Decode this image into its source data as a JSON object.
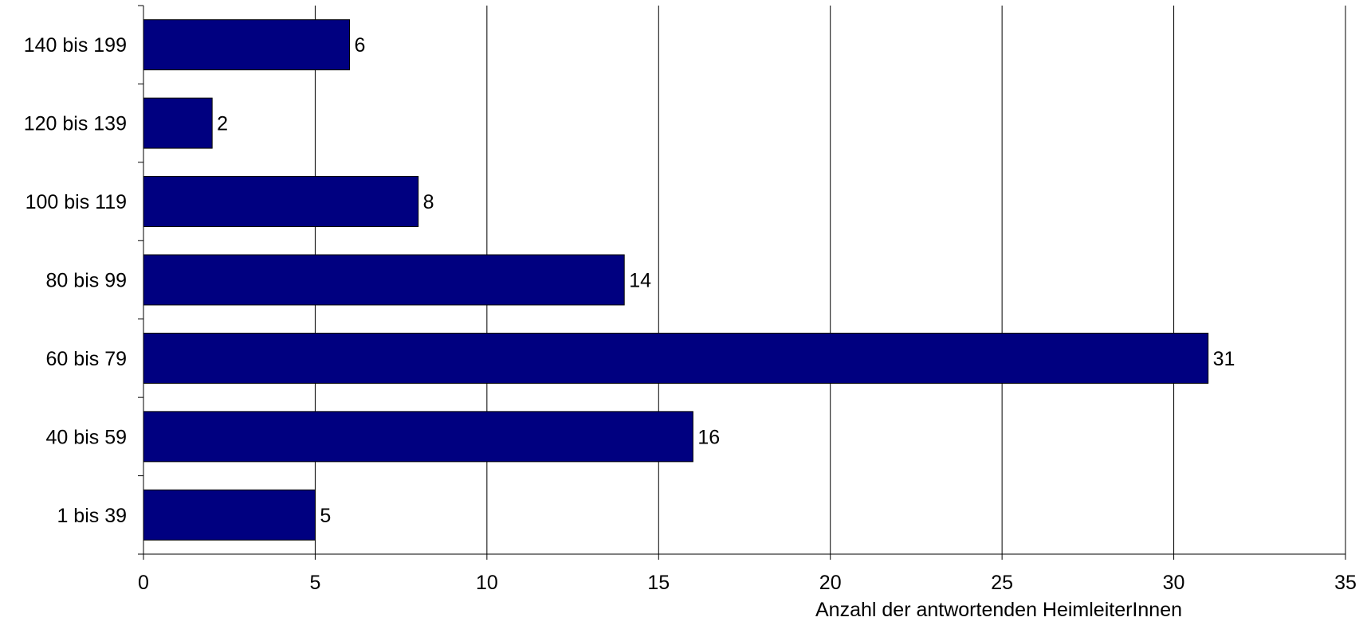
{
  "chart_data": {
    "type": "bar",
    "orientation": "horizontal",
    "categories": [
      "140 bis 199",
      "120 bis 139",
      "100 bis 119",
      "80 bis 99",
      "60 bis 79",
      "40 bis 59",
      "1 bis 39"
    ],
    "values": [
      6,
      2,
      8,
      14,
      31,
      16,
      5
    ],
    "data_labels": [
      "6",
      "2",
      "8",
      "14",
      "31",
      "16",
      "5"
    ],
    "title": "",
    "xlabel": "Anzahl der antwortenden HeimleiterInnen",
    "ylabel": "",
    "xlim": [
      0,
      35
    ],
    "xticks": [
      0,
      5,
      10,
      15,
      20,
      25,
      30,
      35
    ],
    "xtick_labels": [
      "0",
      "5",
      "10",
      "15",
      "20",
      "25",
      "30",
      "35"
    ],
    "grid": "vertical",
    "legend": "none",
    "colors": {
      "bar": "#000080",
      "bar_stroke": "#000000",
      "gridline": "#000000",
      "text": "#000000"
    }
  }
}
